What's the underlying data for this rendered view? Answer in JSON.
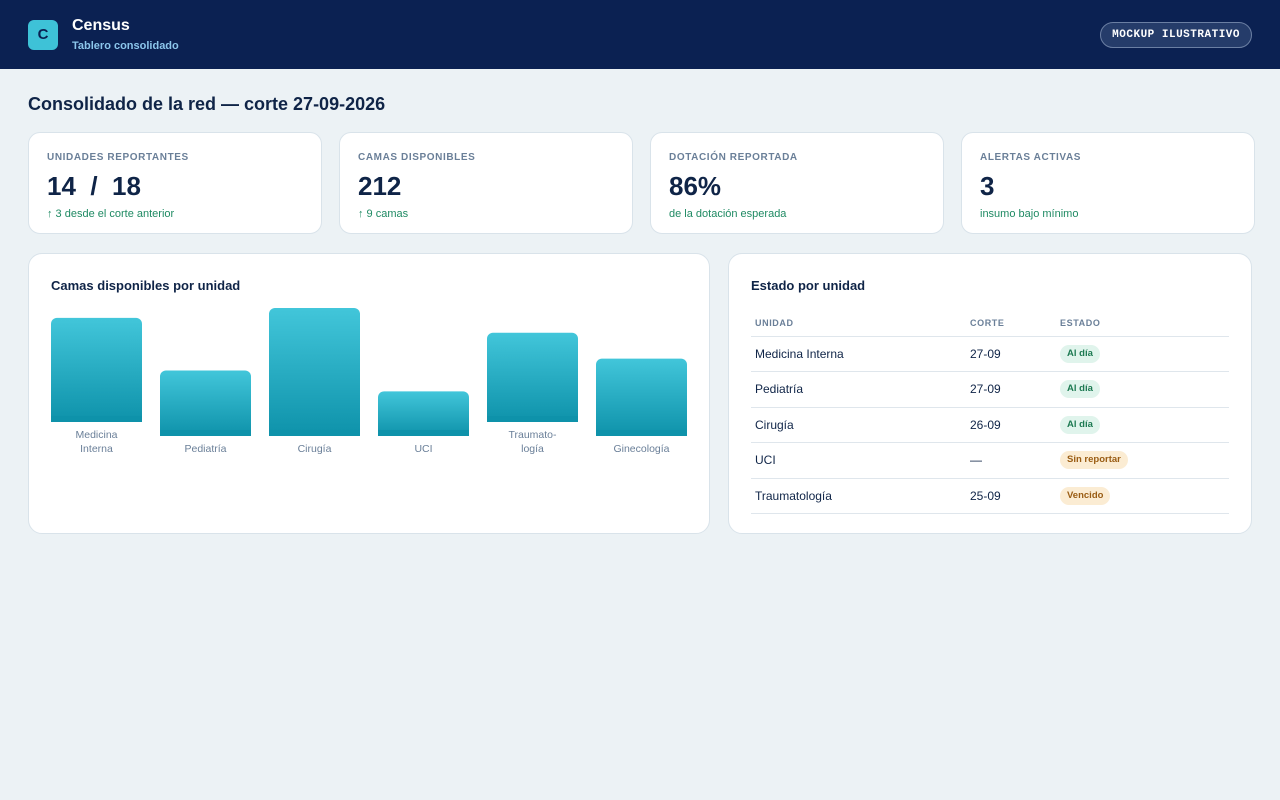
{
  "header": {
    "logo_letter": "C",
    "app_name": "Census",
    "app_subtitle": "Tablero consolidado",
    "badge": "MOCKUP ILUSTRATIVO"
  },
  "page": {
    "title": "Consolidado de la red — corte 27-09-2026"
  },
  "kpis": [
    {
      "label": "UNIDADES REPORTANTES",
      "value": "14  /  18",
      "note": "↑ 3 desde el corte anterior"
    },
    {
      "label": "CAMAS DISPONIBLES",
      "value": "212",
      "note": "↑ 9 camas"
    },
    {
      "label": "DOTACIÓN REPORTADA",
      "value": "86%",
      "note": "de la dotación esperada"
    },
    {
      "label": "ALERTAS ACTIVAS",
      "value": "3",
      "note": "insumo bajo mínimo"
    }
  ],
  "chart_panel": {
    "title": "Camas disponibles por unidad"
  },
  "chart_data": {
    "type": "bar",
    "title": "Camas disponibles por unidad",
    "categories": [
      [
        "Medicina",
        "Interna"
      ],
      [
        "Pediatría"
      ],
      [
        "Cirugía"
      ],
      [
        "UCI"
      ],
      [
        "Traumato-",
        "logía"
      ],
      [
        "Ginecología"
      ]
    ],
    "values": [
      35,
      22,
      43,
      15,
      30,
      26
    ],
    "ylim": [
      0,
      43
    ],
    "grid": false,
    "colors": {
      "bar_top": "#42c6da",
      "bar_bottom": "#0e92aa",
      "label": "#6a7f98"
    }
  },
  "table_panel": {
    "title": "Estado por unidad",
    "columns": [
      "UNIDAD",
      "CORTE",
      "ESTADO"
    ],
    "rows": [
      {
        "unidad": "Medicina Interna",
        "corte": "27-09",
        "estado": "Al día",
        "tone": "ok"
      },
      {
        "unidad": "Pediatría",
        "corte": "27-09",
        "estado": "Al día",
        "tone": "ok"
      },
      {
        "unidad": "Cirugía",
        "corte": "26-09",
        "estado": "Al día",
        "tone": "ok"
      },
      {
        "unidad": "UCI",
        "corte": "—",
        "estado": "Sin reportar",
        "tone": "warn"
      },
      {
        "unidad": "Traumatología",
        "corte": "25-09",
        "estado": "Vencido",
        "tone": "warn"
      }
    ]
  },
  "colors": {
    "header_bg": "#0b2152",
    "accent": "#3ec2d7",
    "page_bg": "#ecf2f5",
    "positive": "#1f8a63"
  }
}
